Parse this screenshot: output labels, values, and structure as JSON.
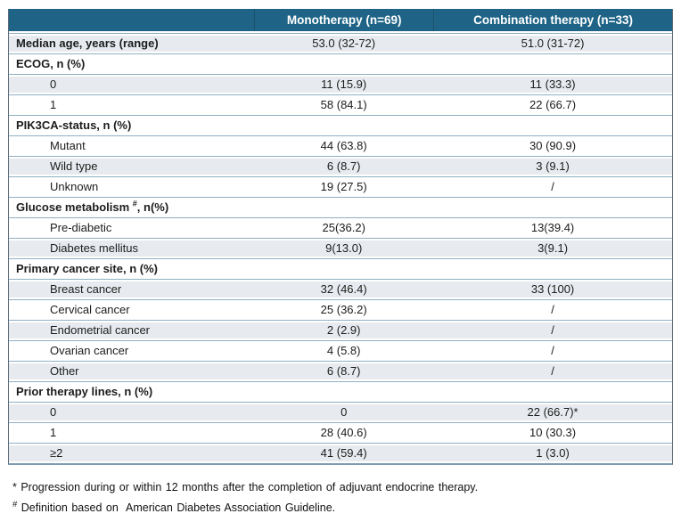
{
  "colors": {
    "header-bg": "#1f6486",
    "header-text": "#ffffff",
    "shaded-row": "#e7ebef",
    "separator": "#8fafc4",
    "outer-border": "#5c6b77",
    "bottom-border": "#7d9cb2",
    "text": "#1c1c1c"
  },
  "table": {
    "columns": [
      "",
      "Monotherapy (n=69)",
      "Combination therapy (n=33)"
    ],
    "rows": [
      {
        "label": "Median age, years (range)",
        "bold": true,
        "indent": false,
        "shaded": true,
        "mono": "53.0 (32-72)",
        "combo": "51.0 (31-72)"
      },
      {
        "label": "ECOG, n (%)",
        "bold": true,
        "indent": false,
        "shaded": false,
        "mono": "",
        "combo": ""
      },
      {
        "label": "0",
        "bold": false,
        "indent": true,
        "shaded": true,
        "mono": "11 (15.9)",
        "combo": "11 (33.3)"
      },
      {
        "label": "1",
        "bold": false,
        "indent": true,
        "shaded": false,
        "mono": "58 (84.1)",
        "combo": "22 (66.7)"
      },
      {
        "label": "PIK3CA-status, n (%)",
        "bold": true,
        "indent": false,
        "shaded": false,
        "mono": "",
        "combo": ""
      },
      {
        "label": "Mutant",
        "bold": false,
        "indent": true,
        "shaded": false,
        "mono": "44 (63.8)",
        "combo": "30 (90.9)"
      },
      {
        "label": "Wild type",
        "bold": false,
        "indent": true,
        "shaded": true,
        "mono": "6 (8.7)",
        "combo": "3 (9.1)"
      },
      {
        "label": "Unknown",
        "bold": false,
        "indent": true,
        "shaded": false,
        "mono": "19 (27.5)",
        "combo": "/"
      },
      {
        "label": "Glucose metabolism ",
        "sup": "#",
        "suffix": ", n(%)",
        "bold": true,
        "indent": false,
        "shaded": false,
        "mono": "",
        "combo": ""
      },
      {
        "label": "Pre-diabetic",
        "bold": false,
        "indent": true,
        "shaded": false,
        "mono": "25(36.2)",
        "combo": "13(39.4)"
      },
      {
        "label": "Diabetes mellitus",
        "bold": false,
        "indent": true,
        "shaded": true,
        "mono": "9(13.0)",
        "combo": "3(9.1)"
      },
      {
        "label": "Primary cancer site, n (%)",
        "bold": true,
        "indent": false,
        "shaded": false,
        "mono": "",
        "combo": ""
      },
      {
        "label": "Breast cancer",
        "bold": false,
        "indent": true,
        "shaded": true,
        "mono": "32 (46.4)",
        "combo": "33 (100)"
      },
      {
        "label": "Cervical cancer",
        "bold": false,
        "indent": true,
        "shaded": false,
        "mono": "25 (36.2)",
        "combo": "/"
      },
      {
        "label": "Endometrial cancer",
        "bold": false,
        "indent": true,
        "shaded": true,
        "mono": "2 (2.9)",
        "combo": "/"
      },
      {
        "label": "Ovarian cancer",
        "bold": false,
        "indent": true,
        "shaded": false,
        "mono": "4 (5.8)",
        "combo": "/"
      },
      {
        "label": "Other",
        "bold": false,
        "indent": true,
        "shaded": true,
        "mono": "6 (8.7)",
        "combo": "/"
      },
      {
        "label": "Prior therapy lines, n (%)",
        "bold": true,
        "indent": false,
        "shaded": false,
        "mono": "",
        "combo": ""
      },
      {
        "label": "0",
        "bold": false,
        "indent": true,
        "shaded": true,
        "mono": "0",
        "combo": "22 (66.7)*"
      },
      {
        "label": "1",
        "bold": false,
        "indent": true,
        "shaded": false,
        "mono": "28 (40.6)",
        "combo": "10 (30.3)"
      },
      {
        "label": "≥2",
        "bold": false,
        "indent": true,
        "shaded": true,
        "mono": "41 (59.4)",
        "combo": "1 (3.0)"
      }
    ]
  },
  "footnotes": [
    {
      "marker": "*",
      "sup": false,
      "text": " Progression during or within 12 months after the completion of adjuvant endocrine therapy."
    },
    {
      "marker": "#",
      "sup": true,
      "text": " Definition based on  American Diabetes Association Guideline."
    }
  ]
}
